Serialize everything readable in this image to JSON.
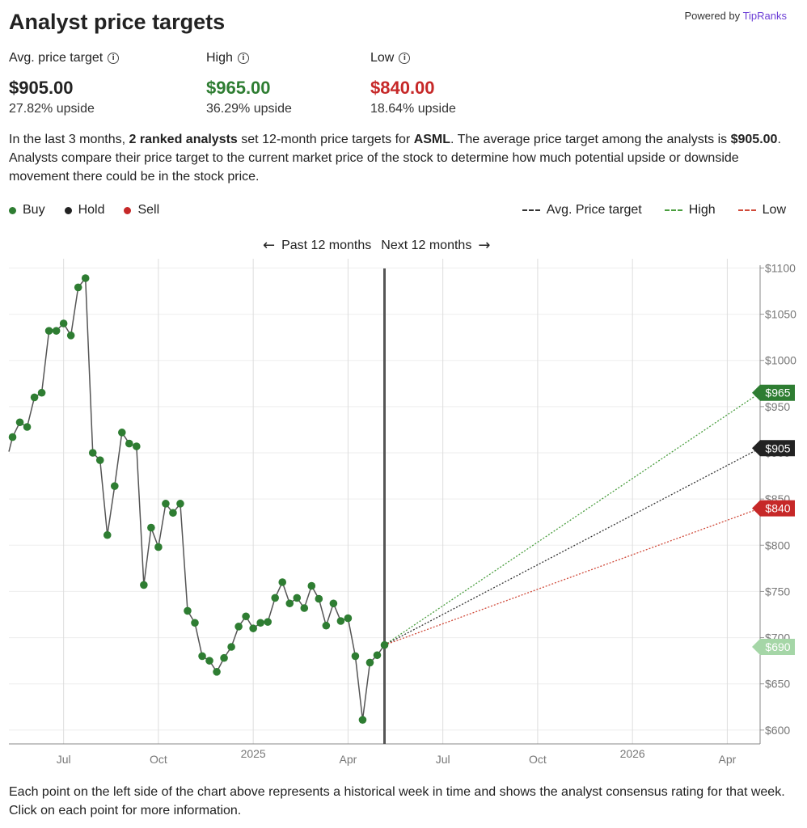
{
  "header": {
    "title": "Analyst price targets",
    "powered_by": "Powered by",
    "brand": "TipRanks"
  },
  "stats": {
    "avg": {
      "label": "Avg. price target",
      "value": "$905.00",
      "sub": "27.82% upside"
    },
    "high": {
      "label": "High",
      "value": "$965.00",
      "sub": "36.29% upside"
    },
    "low": {
      "label": "Low",
      "value": "$840.00",
      "sub": "18.64% upside"
    }
  },
  "description": {
    "p1": "In the last 3 months, ",
    "b1": "2 ranked analysts",
    "p2": " set 12-month price targets for ",
    "b2": "ASML",
    "p3": ". The average price target among the analysts is ",
    "b3": "$905.00",
    "p4": ". Analysts compare their price target to the current market price of the stock to determine how much potential upside or downside movement there could be in the stock price."
  },
  "legend_left": [
    {
      "label": "Buy",
      "color": "#2e7d32"
    },
    {
      "label": "Hold",
      "color": "#222222"
    },
    {
      "label": "Sell",
      "color": "#c62828"
    }
  ],
  "legend_right": [
    {
      "label": "Avg. Price target",
      "color": "#333333"
    },
    {
      "label": "High",
      "color": "#4a9e3f"
    },
    {
      "label": "Low",
      "color": "#d04a3a"
    }
  ],
  "nav": {
    "past": "Past 12 months",
    "next": "Next 12 months"
  },
  "footer": "Each point on the left side of the chart above represents a historical week in time and shows the analyst consensus rating for that week. Click on each point for more information.",
  "chart_data": {
    "type": "line",
    "ylim": [
      585,
      1110
    ],
    "y_ticks": [
      "$1100",
      "$1050",
      "$1000",
      "$950",
      "$900",
      "$850",
      "$800",
      "$750",
      "$700",
      "$650",
      "$600"
    ],
    "y_tick_values": [
      1100,
      1050,
      1000,
      950,
      900,
      850,
      800,
      750,
      700,
      650,
      600
    ],
    "x_ticks": [
      {
        "label": "Jul",
        "week": 6
      },
      {
        "label": "Oct",
        "week": 19
      },
      {
        "label": "2025",
        "week": 32,
        "year": true
      },
      {
        "label": "Apr",
        "week": 45
      },
      {
        "label": "Jul",
        "week": 58
      },
      {
        "label": "Oct",
        "week": 71
      },
      {
        "label": "2026",
        "week": 84,
        "year": true
      },
      {
        "label": "Apr",
        "week": 97
      }
    ],
    "x_range_weeks": [
      -1.5,
      101.5
    ],
    "today_week": 50,
    "series": [
      {
        "name": "Buy",
        "color": "#2e7d32",
        "weeks": [
          -1,
          0,
          1,
          2,
          3,
          4,
          5,
          6,
          7,
          8,
          9,
          10,
          11,
          12,
          13,
          14,
          15,
          16,
          17,
          18,
          19,
          20,
          21,
          22,
          23,
          24,
          25,
          26,
          27,
          28,
          29,
          30,
          31,
          32,
          33,
          34,
          35,
          36,
          37,
          38,
          39,
          40,
          41,
          42,
          43,
          44,
          45,
          46,
          47,
          48,
          49,
          50
        ],
        "values": [
          917,
          933,
          928,
          960,
          965,
          1032,
          1032,
          1040,
          1027,
          1079,
          1089,
          900,
          892,
          811,
          864,
          922,
          910,
          907,
          757,
          819,
          798,
          845,
          835,
          845,
          729,
          716,
          680,
          675,
          663,
          678,
          690,
          712,
          723,
          710,
          716,
          717,
          743,
          760,
          737,
          743,
          732,
          756,
          742,
          713,
          737,
          718,
          721,
          680,
          611,
          673,
          681,
          692
        ]
      }
    ],
    "targets": [
      {
        "name": "High",
        "label": "$965",
        "value": 965,
        "color": "#2e7d32"
      },
      {
        "name": "Avg. Price target",
        "label": "$905",
        "value": 905,
        "color": "#222222"
      },
      {
        "name": "Low",
        "label": "$840",
        "value": 840,
        "color": "#c62828"
      },
      {
        "name": "Current",
        "label": "$690",
        "value": 690,
        "color": "#a5d6a7"
      }
    ]
  }
}
